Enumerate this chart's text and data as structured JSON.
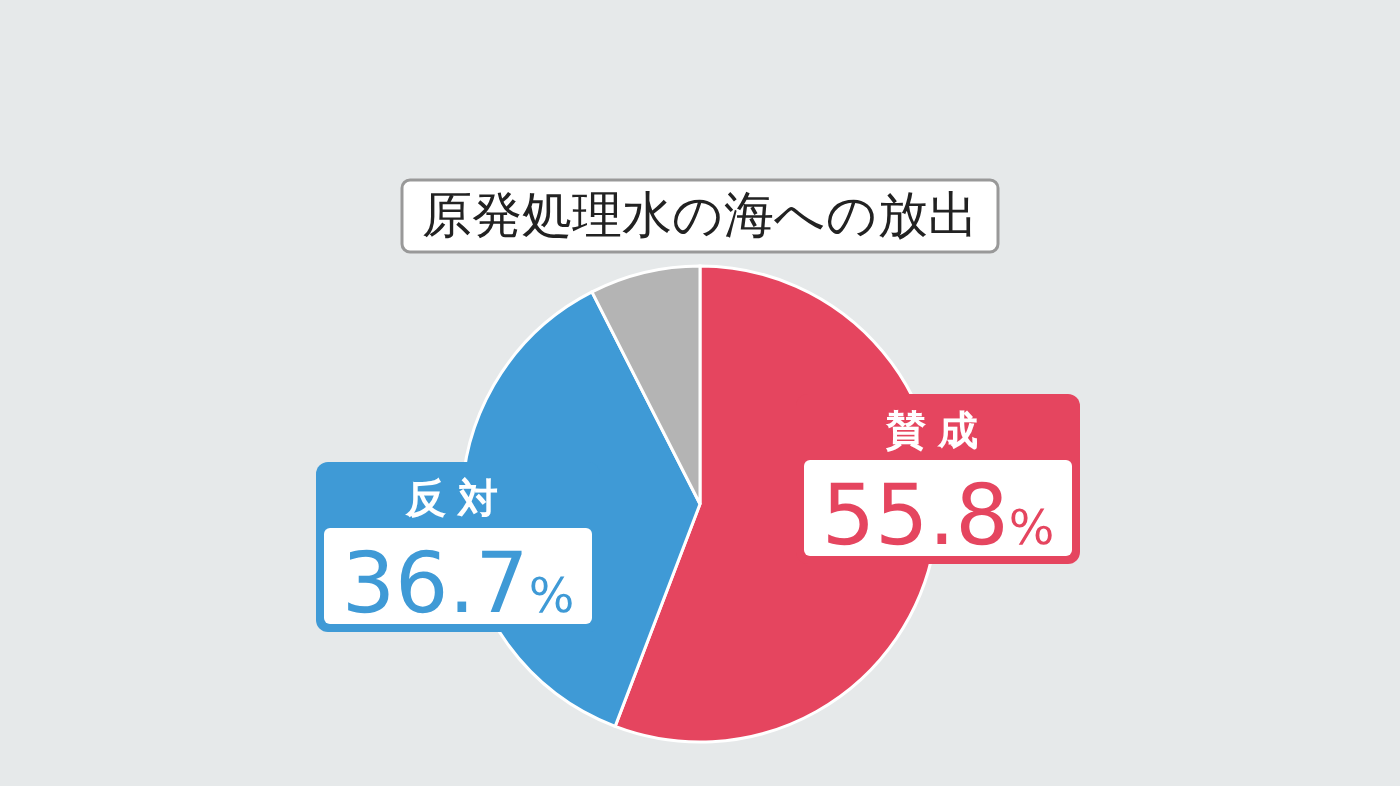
{
  "chart_data": {
    "type": "pie",
    "title": "原発処理水の海への放出",
    "categories": [
      "賛成",
      "反対",
      null
    ],
    "values": [
      55.8,
      36.7,
      7.5
    ],
    "colors": [
      "#e5455f",
      "#3f9ad6",
      "#b4b4b4"
    ],
    "value_labels": [
      "55.8%",
      "36.7%",
      null
    ]
  }
}
